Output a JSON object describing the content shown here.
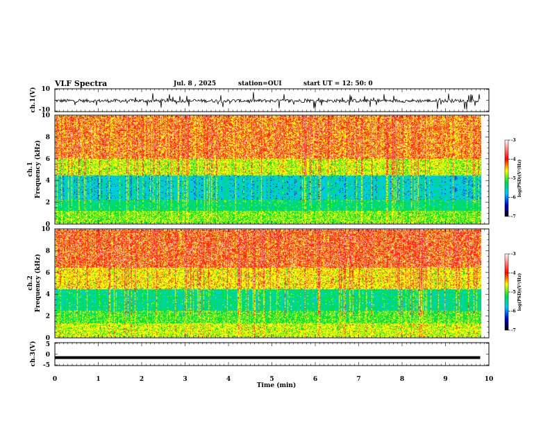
{
  "header": {
    "title": "VLF Spectra",
    "date": "Jul. 8 , 2025",
    "station": "station=OUI",
    "start": "start UT =  12: 50: 0"
  },
  "chart_data": [
    {
      "type": "line",
      "panel": "ch1-voltage",
      "ylabel": "ch.1(V)",
      "ylim": [
        -10,
        10
      ],
      "yticks": [
        "10",
        "-10"
      ],
      "baseline": -0.5,
      "color": "#000000"
    },
    {
      "type": "heatmap",
      "panel": "ch1-spectrogram",
      "ylabel_channel": "ch.1",
      "ylabel": "Frequency (kHz)",
      "ylim": [
        0,
        10
      ],
      "yticks": [
        "0",
        "2",
        "4",
        "6",
        "8",
        "10"
      ],
      "colorbar": {
        "label": "log(PSD)(V²/Hz)",
        "range": [
          -7,
          -3
        ],
        "ticks": [
          "-3",
          "-4",
          "-5",
          "-6",
          "-7"
        ]
      }
    },
    {
      "type": "heatmap",
      "panel": "ch2-spectrogram",
      "ylabel_channel": "ch.2",
      "ylabel": "Frequency (kHz)",
      "ylim": [
        0,
        10
      ],
      "yticks": [
        "0",
        "2",
        "4",
        "6",
        "8",
        "10"
      ],
      "colorbar": {
        "label": "log(PSD)(V²/Hz)",
        "range": [
          -7,
          -3
        ],
        "ticks": [
          "-3",
          "-4",
          "-5",
          "-6",
          "-7"
        ]
      }
    },
    {
      "type": "line",
      "panel": "ch3-voltage",
      "ylabel": "ch.3(V)",
      "ylim": [
        -5,
        5
      ],
      "yticks": [
        "5",
        "0",
        "-5"
      ],
      "level": -1.5,
      "color": "#000000"
    }
  ],
  "xaxis": {
    "label": "Time (min)",
    "range": [
      0,
      10
    ],
    "data_end": 9.8,
    "ticks": [
      "0",
      "1",
      "2",
      "3",
      "4",
      "5",
      "6",
      "7",
      "8",
      "9",
      "10"
    ]
  },
  "colors": {
    "high": "#ff2a10",
    "yellow": "#ffff00",
    "green": "#00e040",
    "cyan": "#00c8ff",
    "blue": "#0000c8",
    "navy": "#000050"
  }
}
